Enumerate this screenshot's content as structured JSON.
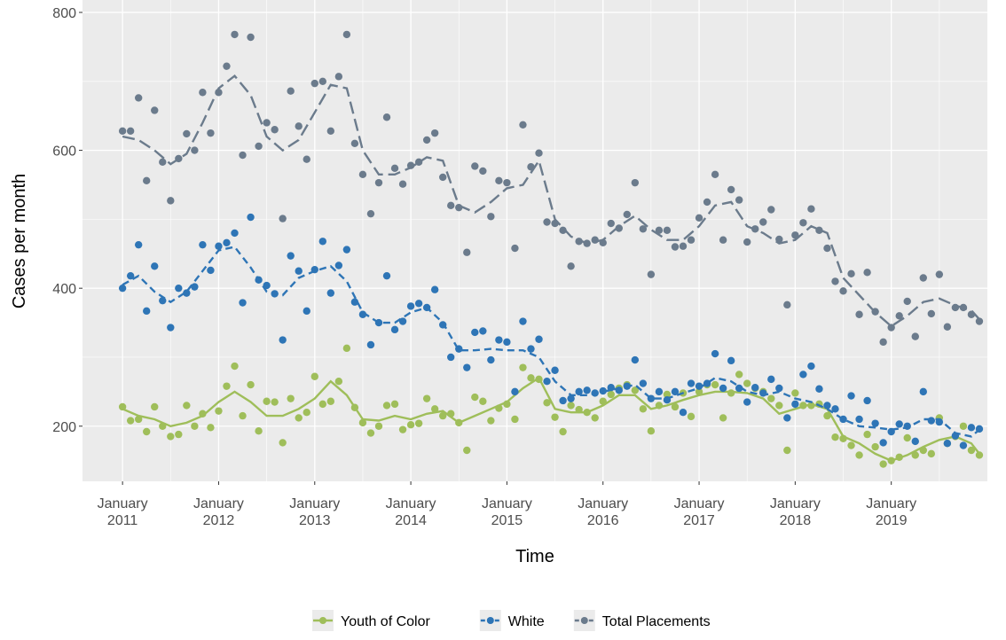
{
  "chart_data": {
    "type": "scatter",
    "x_label": "Time",
    "y_label": "Cases per month",
    "xlim": [
      "2010-08",
      "2020-01"
    ],
    "ylim": [
      120,
      818
    ],
    "xticks": [
      {
        "value": "2011-01",
        "label": "January 2011"
      },
      {
        "value": "2012-01",
        "label": "January 2012"
      },
      {
        "value": "2013-01",
        "label": "January 2013"
      },
      {
        "value": "2014-01",
        "label": "January 2014"
      },
      {
        "value": "2015-01",
        "label": "January 2015"
      },
      {
        "value": "2016-01",
        "label": "January 2016"
      },
      {
        "value": "2017-01",
        "label": "January 2017"
      },
      {
        "value": "2018-01",
        "label": "January 2018"
      },
      {
        "value": "2019-01",
        "label": "January 2019"
      }
    ],
    "xminor": [
      "2011-07",
      "2012-07",
      "2013-07",
      "2014-07",
      "2015-07",
      "2016-07",
      "2017-07",
      "2018-07",
      "2019-07"
    ],
    "yticks": [
      200,
      400,
      600,
      800
    ],
    "yminor": [
      300,
      500,
      700
    ],
    "grid": true,
    "legend": "bottom",
    "x": [
      "2011-01",
      "2011-02",
      "2011-03",
      "2011-04",
      "2011-05",
      "2011-06",
      "2011-07",
      "2011-08",
      "2011-09",
      "2011-10",
      "2011-11",
      "2011-12",
      "2012-01",
      "2012-02",
      "2012-03",
      "2012-04",
      "2012-05",
      "2012-06",
      "2012-07",
      "2012-08",
      "2012-09",
      "2012-10",
      "2012-11",
      "2012-12",
      "2013-01",
      "2013-02",
      "2013-03",
      "2013-04",
      "2013-05",
      "2013-06",
      "2013-07",
      "2013-08",
      "2013-09",
      "2013-10",
      "2013-11",
      "2013-12",
      "2014-01",
      "2014-02",
      "2014-03",
      "2014-04",
      "2014-05",
      "2014-06",
      "2014-07",
      "2014-08",
      "2014-09",
      "2014-10",
      "2014-11",
      "2014-12",
      "2015-01",
      "2015-02",
      "2015-03",
      "2015-04",
      "2015-05",
      "2015-06",
      "2015-07",
      "2015-08",
      "2015-09",
      "2015-10",
      "2015-11",
      "2015-12",
      "2016-01",
      "2016-02",
      "2016-03",
      "2016-04",
      "2016-05",
      "2016-06",
      "2016-07",
      "2016-08",
      "2016-09",
      "2016-10",
      "2016-11",
      "2016-12",
      "2017-01",
      "2017-02",
      "2017-03",
      "2017-04",
      "2017-05",
      "2017-06",
      "2017-07",
      "2017-08",
      "2017-09",
      "2017-10",
      "2017-11",
      "2017-12",
      "2018-01",
      "2018-02",
      "2018-03",
      "2018-04",
      "2018-05",
      "2018-06",
      "2018-07",
      "2018-08",
      "2018-09",
      "2018-10",
      "2018-11",
      "2018-12",
      "2019-01",
      "2019-02",
      "2019-03",
      "2019-04",
      "2019-05",
      "2019-06",
      "2019-07",
      "2019-08",
      "2019-09",
      "2019-10",
      "2019-11",
      "2019-12"
    ],
    "trend_x": [
      "2011-01",
      "2011-03",
      "2011-05",
      "2011-07",
      "2011-09",
      "2011-11",
      "2012-01",
      "2012-03",
      "2012-05",
      "2012-07",
      "2012-09",
      "2012-11",
      "2013-01",
      "2013-03",
      "2013-05",
      "2013-07",
      "2013-09",
      "2013-11",
      "2014-01",
      "2014-03",
      "2014-05",
      "2014-07",
      "2014-09",
      "2014-11",
      "2015-01",
      "2015-03",
      "2015-05",
      "2015-07",
      "2015-09",
      "2015-11",
      "2016-01",
      "2016-03",
      "2016-05",
      "2016-07",
      "2016-09",
      "2016-11",
      "2017-01",
      "2017-03",
      "2017-05",
      "2017-07",
      "2017-09",
      "2017-11",
      "2018-01",
      "2018-03",
      "2018-05",
      "2018-07",
      "2018-09",
      "2018-11",
      "2019-01",
      "2019-03",
      "2019-05",
      "2019-07",
      "2019-09",
      "2019-11",
      "2019-12"
    ],
    "series": [
      {
        "name": "Youth of Color",
        "color": "#9fbe5a",
        "linetype": "solid",
        "values": [
          228,
          208,
          210,
          192,
          228,
          200,
          185,
          188,
          230,
          200,
          218,
          198,
          222,
          258,
          287,
          215,
          260,
          193,
          236,
          235,
          176,
          240,
          212,
          220,
          272,
          232,
          236,
          265,
          313,
          227,
          205,
          190,
          200,
          230,
          232,
          195,
          202,
          204,
          240,
          225,
          215,
          218,
          205,
          165,
          242,
          236,
          208,
          226,
          232,
          210,
          285,
          270,
          268,
          234,
          213,
          192,
          230,
          224,
          220,
          212,
          236,
          246,
          255,
          260,
          252,
          225,
          193,
          230,
          246,
          228,
          248,
          214,
          250,
          260,
          260,
          212,
          248,
          275,
          262,
          255,
          250,
          240,
          230,
          165,
          248,
          230,
          230,
          232,
          215,
          184,
          182,
          172,
          158,
          188,
          170,
          145,
          150,
          155,
          183,
          158,
          165,
          160,
          212,
          175,
          185,
          200,
          165,
          158
        ],
        "trend": [
          225,
          215,
          210,
          200,
          205,
          215,
          235,
          250,
          235,
          215,
          215,
          225,
          240,
          265,
          245,
          210,
          208,
          215,
          210,
          218,
          222,
          205,
          215,
          225,
          235,
          255,
          270,
          225,
          220,
          220,
          230,
          245,
          245,
          225,
          230,
          238,
          245,
          250,
          250,
          248,
          240,
          218,
          225,
          232,
          225,
          185,
          175,
          160,
          150,
          158,
          170,
          180,
          185,
          175,
          160
        ]
      },
      {
        "name": "White",
        "color": "#2e75b6",
        "linetype": "dashed",
        "values": [
          400,
          418,
          463,
          367,
          432,
          382,
          343,
          400,
          393,
          402,
          463,
          426,
          461,
          466,
          480,
          379,
          503,
          412,
          404,
          392,
          325,
          447,
          425,
          367,
          427,
          468,
          393,
          433,
          456,
          380,
          362,
          318,
          350,
          418,
          340,
          352,
          374,
          378,
          372,
          398,
          347,
          300,
          312,
          285,
          336,
          338,
          296,
          325,
          322,
          250,
          352,
          312,
          326,
          265,
          281,
          237,
          240,
          250,
          252,
          248,
          251,
          256,
          252,
          258,
          296,
          262,
          240,
          250,
          238,
          250,
          220,
          262,
          258,
          262,
          305,
          255,
          295,
          255,
          235,
          256,
          248,
          268,
          255,
          212,
          232,
          275,
          287,
          254,
          230,
          225,
          210,
          244,
          210,
          237,
          204,
          176,
          192,
          203,
          200,
          178,
          250,
          208,
          206,
          175,
          186,
          172,
          198,
          196
        ],
        "trend": [
          405,
          418,
          395,
          380,
          395,
          425,
          455,
          460,
          430,
          395,
          390,
          415,
          425,
          432,
          410,
          365,
          350,
          350,
          365,
          372,
          350,
          310,
          310,
          312,
          310,
          310,
          300,
          265,
          245,
          245,
          250,
          255,
          260,
          240,
          240,
          248,
          255,
          270,
          265,
          250,
          245,
          250,
          240,
          235,
          225,
          210,
          200,
          198,
          195,
          198,
          210,
          210,
          190,
          185,
          195
        ]
      },
      {
        "name": "Total Placements",
        "color": "#6b7b8c",
        "linetype": "longdash",
        "values": [
          628,
          628,
          676,
          556,
          658,
          583,
          527,
          588,
          624,
          600,
          684,
          625,
          684,
          722,
          768,
          593,
          764,
          606,
          640,
          630,
          501,
          686,
          635,
          587,
          697,
          700,
          628,
          707,
          768,
          610,
          565,
          508,
          553,
          648,
          574,
          551,
          578,
          583,
          615,
          625,
          561,
          520,
          517,
          452,
          577,
          570,
          504,
          556,
          553,
          458,
          637,
          576,
          596,
          496,
          494,
          484,
          432,
          468,
          465,
          470,
          466,
          494,
          487,
          507,
          553,
          486,
          420,
          484,
          484,
          460,
          461,
          470,
          502,
          525,
          565,
          470,
          543,
          528,
          467,
          486,
          496,
          514,
          471,
          376,
          477,
          495,
          515,
          484,
          458,
          410,
          396,
          421,
          362,
          423,
          366,
          322,
          343,
          360,
          381,
          330,
          415,
          363,
          420,
          344,
          372,
          372,
          362,
          352
        ],
        "trend": [
          620,
          615,
          600,
          580,
          595,
          640,
          690,
          708,
          680,
          620,
          600,
          615,
          655,
          695,
          690,
          600,
          565,
          565,
          575,
          590,
          585,
          520,
          510,
          525,
          545,
          550,
          585,
          500,
          475,
          465,
          470,
          490,
          505,
          485,
          470,
          470,
          490,
          520,
          525,
          490,
          480,
          465,
          470,
          490,
          480,
          415,
          390,
          365,
          345,
          360,
          380,
          385,
          375,
          368,
          355
        ]
      }
    ]
  }
}
